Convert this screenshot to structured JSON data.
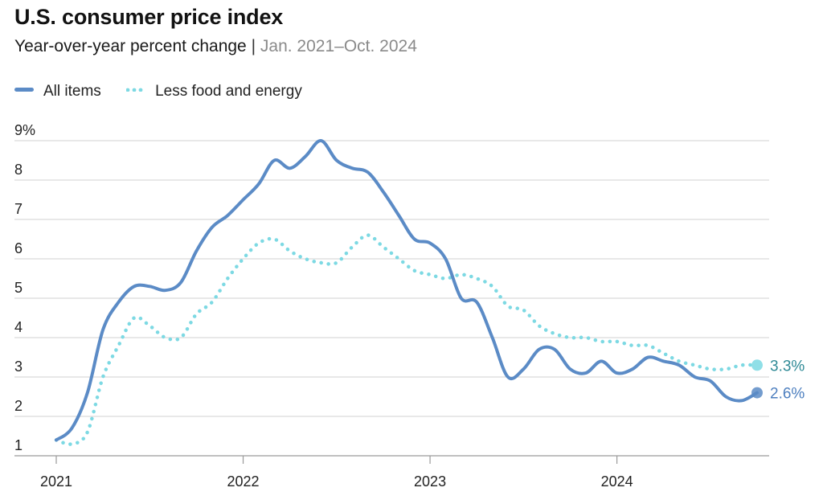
{
  "title": "U.S. consumer price index",
  "subtitle": {
    "main": "Year-over-year percent change",
    "separator": "|",
    "range": "Jan. 2021–Oct. 2024"
  },
  "colors": {
    "all_items": "#5b8bc6",
    "core": "#7dd9e3",
    "grid": "#d0d0d0",
    "axis": "#9a9a9a"
  },
  "chart_data": {
    "type": "line",
    "title": "U.S. consumer price index",
    "ylabel": "Year-over-year percent change",
    "xlabel": "",
    "ylim": [
      1,
      9
    ],
    "y_ticks": [
      "1",
      "2",
      "3",
      "4",
      "5",
      "6",
      "7",
      "8",
      "9%"
    ],
    "x_ticks": [
      "2021",
      "2022",
      "2023",
      "2024"
    ],
    "x_tick_index": [
      0,
      12,
      24,
      36
    ],
    "x": [
      "Jan 2021",
      "Feb 2021",
      "Mar 2021",
      "Apr 2021",
      "May 2021",
      "Jun 2021",
      "Jul 2021",
      "Aug 2021",
      "Sep 2021",
      "Oct 2021",
      "Nov 2021",
      "Dec 2021",
      "Jan 2022",
      "Feb 2022",
      "Mar 2022",
      "Apr 2022",
      "May 2022",
      "Jun 2022",
      "Jul 2022",
      "Aug 2022",
      "Sep 2022",
      "Oct 2022",
      "Nov 2022",
      "Dec 2022",
      "Jan 2023",
      "Feb 2023",
      "Mar 2023",
      "Apr 2023",
      "May 2023",
      "Jun 2023",
      "Jul 2023",
      "Aug 2023",
      "Sep 2023",
      "Oct 2023",
      "Nov 2023",
      "Dec 2023",
      "Jan 2024",
      "Feb 2024",
      "Mar 2024",
      "Apr 2024",
      "May 2024",
      "Jun 2024",
      "Jul 2024",
      "Aug 2024",
      "Sep 2024",
      "Oct 2024"
    ],
    "series": [
      {
        "name": "All items",
        "style": "solid",
        "end_label": "2.6%",
        "values": [
          1.4,
          1.7,
          2.6,
          4.2,
          4.9,
          5.3,
          5.3,
          5.2,
          5.4,
          6.2,
          6.8,
          7.1,
          7.5,
          7.9,
          8.5,
          8.3,
          8.6,
          9.0,
          8.5,
          8.3,
          8.2,
          7.7,
          7.1,
          6.5,
          6.4,
          6.0,
          5.0,
          4.9,
          4.0,
          3.0,
          3.2,
          3.7,
          3.7,
          3.2,
          3.1,
          3.4,
          3.1,
          3.2,
          3.5,
          3.4,
          3.3,
          3.0,
          2.9,
          2.5,
          2.4,
          2.6
        ]
      },
      {
        "name": "Less food and energy",
        "style": "dotted",
        "end_label": "3.3%",
        "values": [
          1.4,
          1.3,
          1.6,
          3.0,
          3.8,
          4.5,
          4.3,
          4.0,
          4.0,
          4.6,
          4.9,
          5.5,
          6.0,
          6.4,
          6.5,
          6.2,
          6.0,
          5.9,
          5.9,
          6.3,
          6.6,
          6.3,
          6.0,
          5.7,
          5.6,
          5.5,
          5.6,
          5.5,
          5.3,
          4.8,
          4.7,
          4.3,
          4.1,
          4.0,
          4.0,
          3.9,
          3.9,
          3.8,
          3.8,
          3.6,
          3.4,
          3.3,
          3.2,
          3.2,
          3.3,
          3.3
        ]
      }
    ]
  }
}
